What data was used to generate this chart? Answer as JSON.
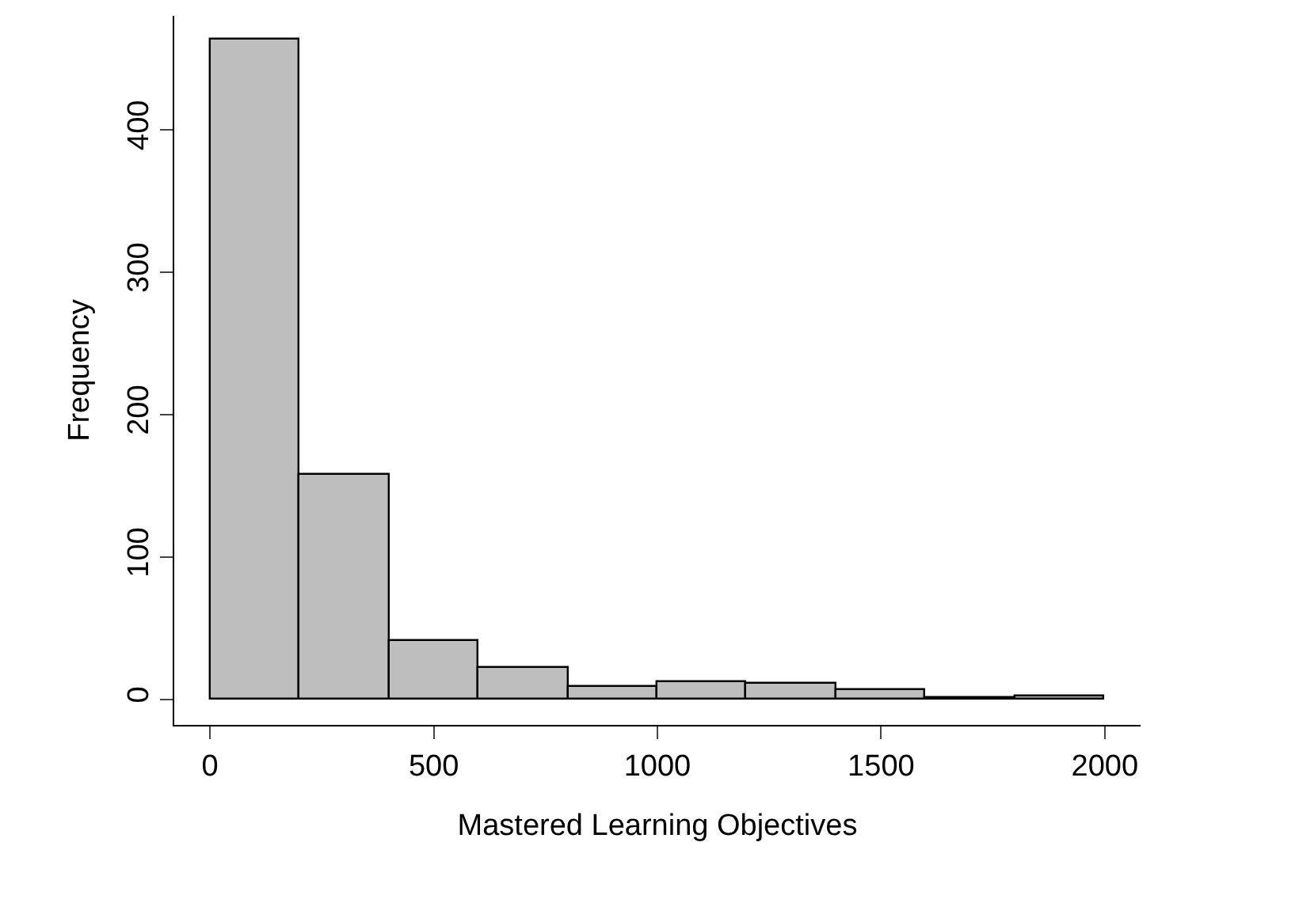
{
  "chart_data": {
    "type": "histogram",
    "xlabel": "Mastered Learning Objectives",
    "ylabel": "Frequency",
    "bins": [
      0,
      200,
      400,
      600,
      800,
      1000,
      1200,
      1400,
      1600,
      1800,
      2000
    ],
    "values": [
      463,
      158,
      41,
      22,
      9,
      12,
      11,
      6,
      1,
      2
    ],
    "color": "#bebebe",
    "xlim": [
      -80,
      2080
    ],
    "ylim": [
      -18,
      480
    ],
    "xticks": [
      0,
      500,
      1000,
      1500,
      2000
    ],
    "yticks": [
      0,
      100,
      200,
      300,
      400
    ]
  }
}
